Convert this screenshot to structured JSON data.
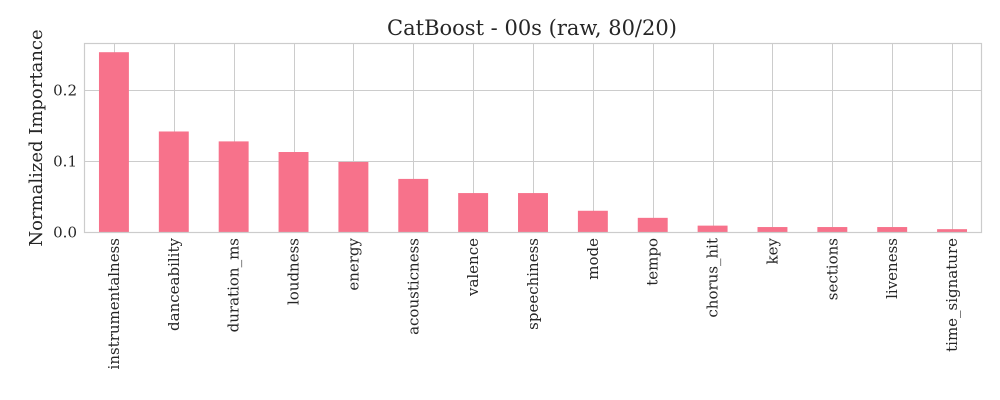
{
  "chart_data": {
    "type": "bar",
    "title": "CatBoost - 00s (raw, 80/20)",
    "xlabel": "",
    "ylabel": "Normalized Importance",
    "categories": [
      "instrumentalness",
      "danceability",
      "duration_ms",
      "loudness",
      "energy",
      "acousticness",
      "valence",
      "speechiness",
      "mode",
      "tempo",
      "chorus_hit",
      "key",
      "sections",
      "liveness",
      "time_signature"
    ],
    "values": [
      0.254,
      0.142,
      0.128,
      0.113,
      0.099,
      0.075,
      0.055,
      0.055,
      0.03,
      0.02,
      0.009,
      0.007,
      0.007,
      0.007,
      0.004
    ],
    "ylim": [
      0,
      0.267
    ],
    "yticks": [
      0.0,
      0.1,
      0.2
    ],
    "ytick_labels": [
      "0.0",
      "0.1",
      "0.2"
    ],
    "grid": true,
    "bar_color": "#f7728b"
  }
}
